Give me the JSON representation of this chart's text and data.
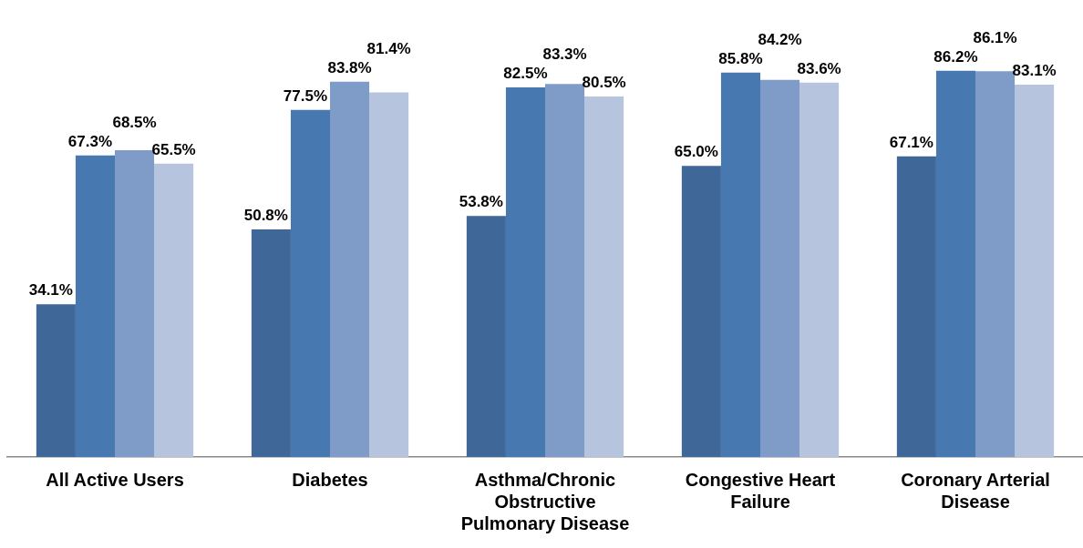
{
  "chart_data": {
    "type": "bar",
    "categories": [
      "All Active Users",
      "Diabetes",
      "Asthma/Chronic Obstructive Pulmonary Disease",
      "Congestive Heart Failure",
      "Coronary Arterial Disease"
    ],
    "series": [
      {
        "color": "#3f6797",
        "values": [
          34.1,
          50.8,
          53.8,
          65.0,
          67.1
        ],
        "value_labels": [
          "34.1%",
          "50.8%",
          "53.8%",
          "65.0%",
          "67.1%"
        ]
      },
      {
        "color": "#4878b0",
        "values": [
          67.3,
          77.5,
          82.5,
          85.8,
          86.2
        ],
        "value_labels": [
          "67.3%",
          "77.5%",
          "82.5%",
          "85.8%",
          "86.2%"
        ]
      },
      {
        "color": "#7f9cc8",
        "values": [
          68.5,
          83.8,
          83.3,
          84.2,
          86.1
        ],
        "value_labels": [
          "68.5%",
          "83.8%",
          "83.3%",
          "84.2%",
          "86.1%"
        ]
      },
      {
        "color": "#b6c4de",
        "values": [
          65.5,
          81.4,
          80.5,
          83.6,
          83.1
        ],
        "value_labels": [
          "65.5%",
          "81.4%",
          "80.5%",
          "83.6%",
          "83.1%"
        ]
      }
    ],
    "grid": false,
    "legend": false,
    "tick_labels": "x"
  }
}
